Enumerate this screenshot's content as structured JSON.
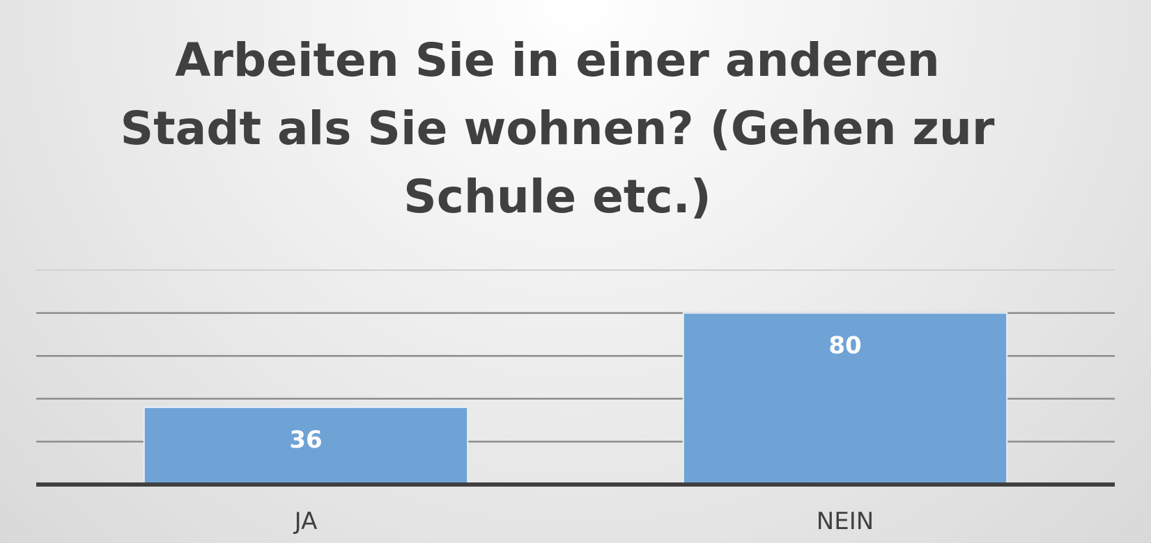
{
  "chart_data": {
    "type": "bar",
    "title": "Arbeiten Sie in einer anderen Stadt als Sie wohnen? (Gehen zur Schule etc.)",
    "categories": [
      "JA",
      "NEIN"
    ],
    "values": [
      36,
      80
    ],
    "data_labels": [
      "36",
      "80"
    ],
    "xlabel": "",
    "ylabel": "",
    "ylim": [
      0,
      100
    ],
    "gridline_step": 20,
    "grid": true,
    "legend": "none",
    "bar_color": "#6fa3d6",
    "bar_border_color": "#e8eef5",
    "axis_color": "#404040",
    "grid_color": "#8c8c8c"
  }
}
